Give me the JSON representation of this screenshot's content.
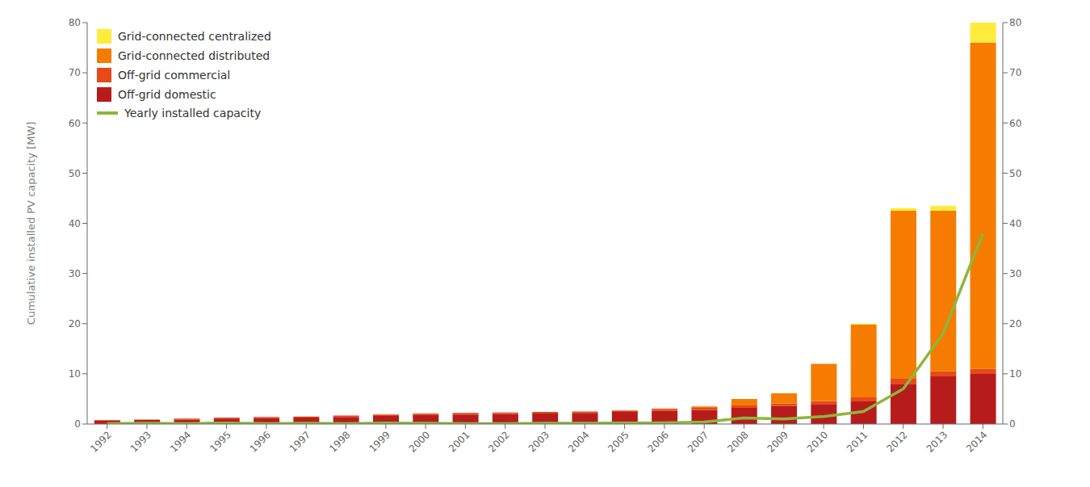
{
  "chart_data": {
    "type": "bar",
    "stacked": true,
    "grid": false,
    "legend": "upper left",
    "ylabel": "Cumulative installed PV capacity [MW]",
    "categories": [
      "1992",
      "1993",
      "1994",
      "1995",
      "1996",
      "1997",
      "1998",
      "1999",
      "2000",
      "2001",
      "2002",
      "2003",
      "2004",
      "2005",
      "2006",
      "2007",
      "2008",
      "2009",
      "2010",
      "2011",
      "2012",
      "2013",
      "2014"
    ],
    "ylim": [
      0,
      80
    ],
    "yticks": [
      0,
      10,
      20,
      30,
      40,
      50,
      60,
      70,
      80
    ],
    "y2lim": [
      0,
      80
    ],
    "y2ticks": [
      0,
      10,
      20,
      30,
      40,
      50,
      60,
      70,
      80
    ],
    "series": [
      {
        "name": "Off-grid domestic",
        "color": "#b71c1c",
        "values": [
          0.7,
          0.8,
          0.9,
          1.1,
          1.2,
          1.3,
          1.4,
          1.6,
          1.8,
          1.9,
          2.0,
          2.1,
          2.2,
          2.4,
          2.6,
          2.8,
          3.2,
          3.6,
          4.0,
          4.5,
          8.0,
          9.5,
          10.0
        ]
      },
      {
        "name": "Off-grid commercial",
        "color": "#e64a19",
        "values": [
          0.1,
          0.1,
          0.2,
          0.2,
          0.2,
          0.2,
          0.3,
          0.3,
          0.3,
          0.3,
          0.3,
          0.3,
          0.3,
          0.3,
          0.4,
          0.4,
          0.5,
          0.5,
          0.6,
          0.8,
          1.0,
          1.0,
          1.0
        ]
      },
      {
        "name": "Grid-connected distributed",
        "color": "#f57c00",
        "values": [
          0.0,
          0.0,
          0.0,
          0.0,
          0.0,
          0.0,
          0.0,
          0.0,
          0.0,
          0.0,
          0.0,
          0.0,
          0.0,
          0.0,
          0.1,
          0.3,
          1.3,
          2.0,
          7.4,
          14.5,
          33.5,
          32.0,
          65.0
        ]
      },
      {
        "name": "Grid-connected centralized",
        "color": "#ffeb3b",
        "values": [
          0.0,
          0.0,
          0.0,
          0.0,
          0.0,
          0.0,
          0.0,
          0.0,
          0.0,
          0.0,
          0.0,
          0.0,
          0.0,
          0.0,
          0.0,
          0.0,
          0.0,
          0.0,
          0.0,
          0.2,
          0.5,
          1.0,
          4.0
        ]
      },
      {
        "name": "Yearly installed capacity",
        "type": "line",
        "axis": "y2",
        "color": "#8db63c",
        "values": [
          0.1,
          0.15,
          0.1,
          0.2,
          0.1,
          0.15,
          0.1,
          0.2,
          0.15,
          0.1,
          0.1,
          0.15,
          0.15,
          0.2,
          0.25,
          0.4,
          1.2,
          1.0,
          1.5,
          2.5,
          7.0,
          18.0,
          38.0
        ]
      }
    ]
  }
}
